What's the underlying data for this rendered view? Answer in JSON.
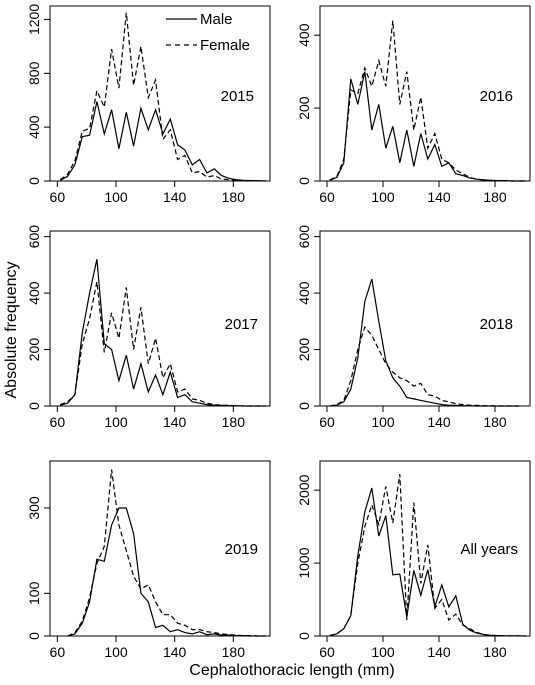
{
  "figure": {
    "ylabel": "Absolute frequency",
    "xlabel": "Cephalothoracic length (mm)"
  },
  "legend": {
    "entries": [
      {
        "label": "Male",
        "style": "solid"
      },
      {
        "label": "Female",
        "style": "dashed"
      }
    ]
  },
  "chart_data": [
    {
      "type": "line",
      "panel_label": "2015",
      "xlim": [
        55,
        205
      ],
      "ylim": [
        0,
        1300
      ],
      "xticks": [
        60,
        100,
        140,
        180
      ],
      "yticks": [
        0,
        400,
        800,
        1200
      ],
      "x": [
        62,
        67,
        72,
        77,
        82,
        87,
        92,
        97,
        102,
        107,
        112,
        117,
        122,
        127,
        132,
        137,
        142,
        147,
        152,
        157,
        162,
        167,
        172,
        177,
        182,
        187,
        192,
        197,
        202
      ],
      "series": [
        {
          "name": "Male",
          "style": "solid",
          "values": [
            5,
            35,
            120,
            330,
            340,
            590,
            350,
            530,
            240,
            510,
            260,
            540,
            380,
            530,
            350,
            460,
            270,
            230,
            120,
            160,
            60,
            90,
            40,
            20,
            10,
            5,
            3,
            2,
            1
          ]
        },
        {
          "name": "Female",
          "style": "dashed",
          "values": [
            10,
            50,
            150,
            370,
            390,
            670,
            550,
            980,
            690,
            1250,
            710,
            1000,
            620,
            750,
            310,
            380,
            160,
            190,
            60,
            70,
            30,
            40,
            15,
            10,
            5,
            3,
            2,
            1,
            0
          ]
        }
      ]
    },
    {
      "type": "line",
      "panel_label": "2016",
      "xlim": [
        55,
        205
      ],
      "ylim": [
        0,
        480
      ],
      "xticks": [
        60,
        100,
        140,
        180
      ],
      "yticks": [
        0,
        200,
        400
      ],
      "x": [
        62,
        67,
        72,
        77,
        82,
        87,
        92,
        97,
        102,
        107,
        112,
        117,
        122,
        127,
        132,
        137,
        142,
        147,
        152,
        157,
        162,
        167,
        172,
        177,
        182,
        187,
        192,
        197,
        202
      ],
      "series": [
        {
          "name": "Male",
          "style": "solid",
          "values": [
            2,
            10,
            50,
            280,
            210,
            300,
            140,
            210,
            90,
            150,
            50,
            140,
            40,
            130,
            60,
            100,
            40,
            50,
            20,
            15,
            8,
            5,
            3,
            2,
            1,
            1,
            0,
            0,
            0
          ]
        },
        {
          "name": "Female",
          "style": "dashed",
          "values": [
            3,
            12,
            60,
            250,
            240,
            310,
            260,
            330,
            260,
            440,
            210,
            300,
            140,
            230,
            90,
            130,
            60,
            50,
            30,
            20,
            10,
            5,
            3,
            2,
            1,
            1,
            0,
            0,
            0
          ]
        }
      ]
    },
    {
      "type": "line",
      "panel_label": "2017",
      "xlim": [
        55,
        205
      ],
      "ylim": [
        0,
        620
      ],
      "xticks": [
        60,
        100,
        140,
        180
      ],
      "yticks": [
        0,
        200,
        400,
        600
      ],
      "x": [
        62,
        67,
        72,
        77,
        82,
        87,
        92,
        97,
        102,
        107,
        112,
        117,
        122,
        127,
        132,
        137,
        142,
        147,
        152,
        157,
        162,
        167,
        172,
        177,
        182,
        187,
        192,
        197,
        202
      ],
      "series": [
        {
          "name": "Male",
          "style": "solid",
          "values": [
            3,
            10,
            40,
            260,
            400,
            520,
            220,
            200,
            90,
            180,
            60,
            150,
            50,
            110,
            40,
            120,
            30,
            40,
            15,
            10,
            5,
            3,
            2,
            1,
            1,
            0,
            0,
            0,
            0
          ]
        },
        {
          "name": "Female",
          "style": "dashed",
          "values": [
            5,
            15,
            40,
            220,
            310,
            440,
            190,
            330,
            240,
            420,
            200,
            350,
            150,
            240,
            100,
            150,
            50,
            60,
            25,
            20,
            10,
            5,
            3,
            2,
            1,
            0,
            0,
            0,
            0
          ]
        }
      ]
    },
    {
      "type": "line",
      "panel_label": "2018",
      "xlim": [
        55,
        205
      ],
      "ylim": [
        0,
        620
      ],
      "xticks": [
        60,
        100,
        140,
        180
      ],
      "yticks": [
        0,
        200,
        400,
        600
      ],
      "x": [
        62,
        67,
        72,
        77,
        82,
        87,
        92,
        97,
        102,
        107,
        112,
        117,
        122,
        127,
        132,
        137,
        142,
        147,
        152,
        157,
        162,
        167,
        172,
        177,
        182,
        187,
        192,
        197
      ],
      "series": [
        {
          "name": "Male",
          "style": "solid",
          "values": [
            0,
            3,
            15,
            60,
            170,
            370,
            450,
            300,
            160,
            100,
            70,
            30,
            25,
            20,
            15,
            10,
            5,
            3,
            2,
            1,
            1,
            0,
            0,
            0,
            0,
            0,
            0,
            0
          ]
        },
        {
          "name": "Female",
          "style": "dashed",
          "values": [
            0,
            5,
            20,
            90,
            200,
            280,
            250,
            200,
            150,
            120,
            100,
            90,
            70,
            80,
            40,
            35,
            20,
            15,
            8,
            5,
            3,
            2,
            1,
            1,
            0,
            0,
            0,
            0
          ]
        }
      ]
    },
    {
      "type": "line",
      "panel_label": "2019",
      "xlim": [
        55,
        205
      ],
      "ylim": [
        0,
        410
      ],
      "xticks": [
        60,
        100,
        140,
        180
      ],
      "yticks": [
        0,
        100,
        300
      ],
      "x": [
        67,
        72,
        77,
        82,
        87,
        92,
        97,
        102,
        107,
        112,
        117,
        122,
        127,
        132,
        137,
        142,
        147,
        152,
        157,
        162,
        167,
        172,
        177,
        182,
        187,
        192,
        197,
        202
      ],
      "series": [
        {
          "name": "Male",
          "style": "solid",
          "values": [
            0,
            5,
            30,
            80,
            180,
            175,
            260,
            300,
            300,
            240,
            100,
            80,
            20,
            25,
            10,
            15,
            8,
            5,
            10,
            3,
            5,
            2,
            2,
            1,
            1,
            0,
            0,
            0
          ]
        },
        {
          "name": "Female",
          "style": "dashed",
          "values": [
            0,
            8,
            35,
            90,
            170,
            210,
            390,
            260,
            200,
            140,
            110,
            120,
            80,
            50,
            50,
            30,
            25,
            15,
            15,
            10,
            8,
            5,
            3,
            2,
            1,
            1,
            0,
            0
          ]
        }
      ]
    },
    {
      "type": "line",
      "panel_label": "All years",
      "xlim": [
        55,
        205
      ],
      "ylim": [
        0,
        2400
      ],
      "xticks": [
        60,
        100,
        140,
        180
      ],
      "yticks": [
        0,
        1000,
        2000
      ],
      "x": [
        62,
        67,
        72,
        77,
        82,
        87,
        92,
        97,
        102,
        107,
        112,
        117,
        122,
        127,
        132,
        137,
        142,
        147,
        152,
        157,
        162,
        167,
        172,
        177,
        182,
        187,
        192,
        197,
        202
      ],
      "series": [
        {
          "name": "Male",
          "style": "solid",
          "values": [
            5,
            30,
            100,
            280,
            1100,
            1700,
            2030,
            1370,
            1650,
            840,
            850,
            260,
            900,
            560,
            910,
            400,
            700,
            400,
            550,
            160,
            80,
            40,
            20,
            10,
            5,
            3,
            2,
            1,
            0
          ]
        },
        {
          "name": "Female",
          "style": "dashed",
          "values": [
            5,
            30,
            100,
            280,
            1000,
            1500,
            1800,
            1530,
            2050,
            1550,
            2220,
            220,
            1830,
            720,
            1250,
            380,
            500,
            220,
            300,
            150,
            100,
            50,
            20,
            10,
            5,
            3,
            2,
            1,
            0
          ]
        }
      ]
    }
  ]
}
